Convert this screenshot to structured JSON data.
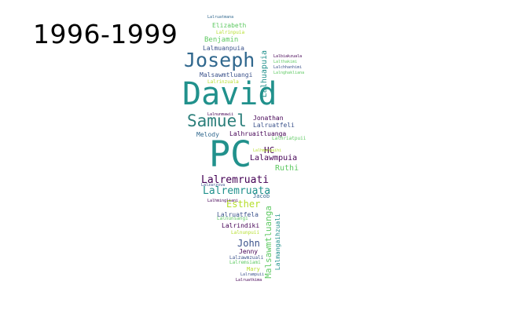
{
  "title": "1996-1999",
  "palette": {
    "teal": "#21918c",
    "green": "#5ec962",
    "purple": "#440154",
    "navy": "#3b528b",
    "blue": "#31688e",
    "lime": "#b5de2b",
    "yellow": "#fde725",
    "darkteal": "#2c7f7b"
  },
  "words": [
    {
      "text": "Lalruatmana"
    },
    {
      "text": "Elizabeth"
    },
    {
      "text": "Lalrinpuia"
    },
    {
      "text": "Benjamin"
    },
    {
      "text": "Lalmuanpuia"
    },
    {
      "text": "Joseph"
    },
    {
      "text": "Malsawmtluangi"
    },
    {
      "text": "Lalrinzuala"
    },
    {
      "text": "David"
    },
    {
      "text": "Samuel"
    },
    {
      "text": "Jonathan"
    },
    {
      "text": "Lalruatfeli"
    },
    {
      "text": "Lalnunmawii"
    },
    {
      "text": "Melody"
    },
    {
      "text": "Lalhruaitluanga"
    },
    {
      "text": "PC"
    },
    {
      "text": "HC"
    },
    {
      "text": "Lalawmpuia"
    },
    {
      "text": "Ruthi"
    },
    {
      "text": "Lalremruati"
    },
    {
      "text": "Lalremruata"
    },
    {
      "text": "Esther"
    },
    {
      "text": "Jacob"
    },
    {
      "text": "Lalruatfela"
    },
    {
      "text": "Lalnunsangi"
    },
    {
      "text": "Lalrindiki"
    },
    {
      "text": "Lalnunpuii"
    },
    {
      "text": "John"
    },
    {
      "text": "Jenny"
    },
    {
      "text": "Lalzawmzuali"
    },
    {
      "text": "Lalremsiami"
    },
    {
      "text": "Mary"
    },
    {
      "text": "Lalrampuii"
    },
    {
      "text": "Lalruatkima"
    },
    {
      "text": "Malsawmtluanga"
    },
    {
      "text": "Lalmangaihzuali"
    },
    {
      "text": "Lalhuapuia"
    },
    {
      "text": "Lalbiakzuala"
    },
    {
      "text": "Lalthakimi"
    },
    {
      "text": "Lalchhanhimi"
    },
    {
      "text": "Lalnghakliana"
    },
    {
      "text": "Lalhriatpuii"
    },
    {
      "text": "Lalhmangaihi"
    },
    {
      "text": "Lalzarzova"
    },
    {
      "text": "Lalhmingliani"
    }
  ]
}
